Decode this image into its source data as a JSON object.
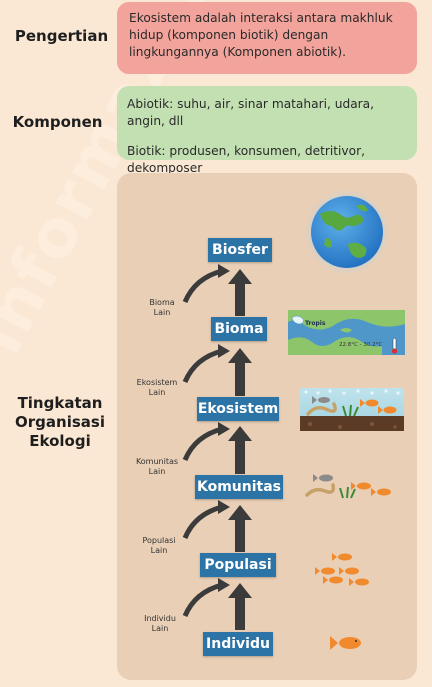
{
  "pengertian": {
    "label": "Pengertian",
    "text": "Ekosistem adalah interaksi antara makhluk hidup (komponen biotik) dengan lingkungannya (Komponen abiotik)."
  },
  "komponen": {
    "label": "Komponen",
    "abiotik": "Abiotik: suhu, air, sinar matahari, udara, angin, dll",
    "biotik": "Biotik: produsen, konsumen, detritivor, dekomposer"
  },
  "tingkatan": {
    "label_line1": "Tingkatan",
    "label_line2": "Organisasi",
    "label_line3": "Ekologi",
    "levels": [
      "Biosfer",
      "Bioma",
      "Ekosistem",
      "Komunitas",
      "Populasi",
      "Individu"
    ],
    "lain": [
      {
        "line1": "Bioma",
        "line2": "Lain"
      },
      {
        "line1": "Ekosistem",
        "line2": "Lain"
      },
      {
        "line1": "Komunitas",
        "line2": "Lain"
      },
      {
        "line1": "Populasi",
        "line2": "Lain"
      },
      {
        "line1": "Individu",
        "line2": "Lain"
      }
    ]
  },
  "bioma_image": {
    "label": "Tropis",
    "temp": "22.8°C - 30.2°C"
  },
  "watermark": "informazone.com",
  "colors": {
    "background": "#fbe8d4",
    "pengertian_box": "#f2a39b",
    "komponen_box": "#c3e0b3",
    "panel": "#e9cfb6",
    "level_box": "#2d74a6",
    "arrow": "#3b3b3b",
    "fish": "#f08a2c"
  }
}
